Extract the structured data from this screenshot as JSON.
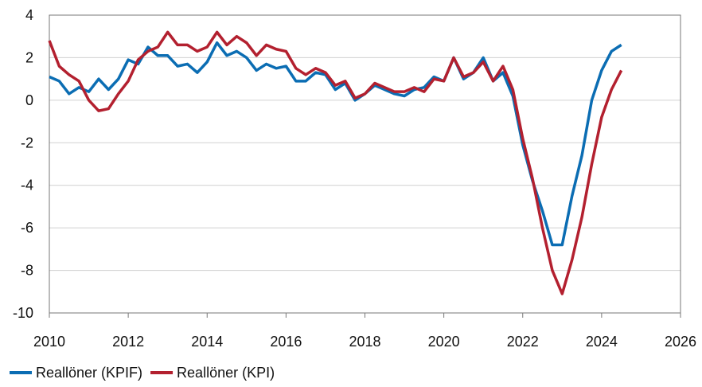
{
  "chart_data": {
    "type": "line",
    "x": [
      2010,
      2010.25,
      2010.5,
      2010.75,
      2011,
      2011.25,
      2011.5,
      2011.75,
      2012,
      2012.25,
      2012.5,
      2012.75,
      2013,
      2013.25,
      2013.5,
      2013.75,
      2014,
      2014.25,
      2014.5,
      2014.75,
      2015,
      2015.25,
      2015.5,
      2015.75,
      2016,
      2016.25,
      2016.5,
      2016.75,
      2017,
      2017.25,
      2017.5,
      2017.75,
      2018,
      2018.25,
      2018.5,
      2018.75,
      2019,
      2019.25,
      2019.5,
      2019.75,
      2020,
      2020.25,
      2020.5,
      2020.75,
      2021,
      2021.25,
      2021.5,
      2021.75,
      2022,
      2022.25,
      2022.5,
      2022.75,
      2023,
      2023.25,
      2023.5,
      2023.75,
      2024,
      2024.25,
      2024.5
    ],
    "series": [
      {
        "name": "Reallöner (KPIF)",
        "color": "#0b6db3",
        "values": [
          1.1,
          0.9,
          0.3,
          0.6,
          0.4,
          1.0,
          0.5,
          1.0,
          1.9,
          1.7,
          2.5,
          2.1,
          2.1,
          1.6,
          1.7,
          1.3,
          1.8,
          2.7,
          2.1,
          2.3,
          2.0,
          1.4,
          1.7,
          1.5,
          1.6,
          0.9,
          0.9,
          1.3,
          1.2,
          0.5,
          0.8,
          0.0,
          0.3,
          0.7,
          0.5,
          0.3,
          0.2,
          0.5,
          0.6,
          1.1,
          0.9,
          2.0,
          1.0,
          1.3,
          2.0,
          0.9,
          1.3,
          0.2,
          -2.1,
          -3.8,
          -5.2,
          -6.8,
          -6.8,
          -4.5,
          -2.6,
          0.0,
          1.4,
          2.3,
          2.6
        ]
      },
      {
        "name": "Reallöner (KPI)",
        "color": "#b3202f",
        "values": [
          2.8,
          1.6,
          1.2,
          0.9,
          0.0,
          -0.5,
          -0.4,
          0.3,
          0.9,
          1.9,
          2.3,
          2.5,
          3.2,
          2.6,
          2.6,
          2.3,
          2.5,
          3.2,
          2.6,
          3.0,
          2.7,
          2.1,
          2.6,
          2.4,
          2.3,
          1.5,
          1.2,
          1.5,
          1.3,
          0.7,
          0.9,
          0.1,
          0.3,
          0.8,
          0.6,
          0.4,
          0.4,
          0.6,
          0.4,
          1.0,
          0.9,
          2.0,
          1.1,
          1.3,
          1.8,
          0.9,
          1.6,
          0.5,
          -1.8,
          -3.7,
          -6.0,
          -8.0,
          -9.1,
          -7.5,
          -5.5,
          -3.0,
          -0.8,
          0.5,
          1.4
        ]
      }
    ],
    "xlim": [
      2010,
      2026
    ],
    "xticks": [
      2010,
      2012,
      2014,
      2016,
      2018,
      2020,
      2022,
      2024,
      2026
    ],
    "ylim": [
      -10,
      4
    ],
    "yticks": [
      -10,
      -8,
      -6,
      -4,
      -2,
      0,
      2,
      4
    ],
    "grid": true,
    "legend": "bottom"
  }
}
